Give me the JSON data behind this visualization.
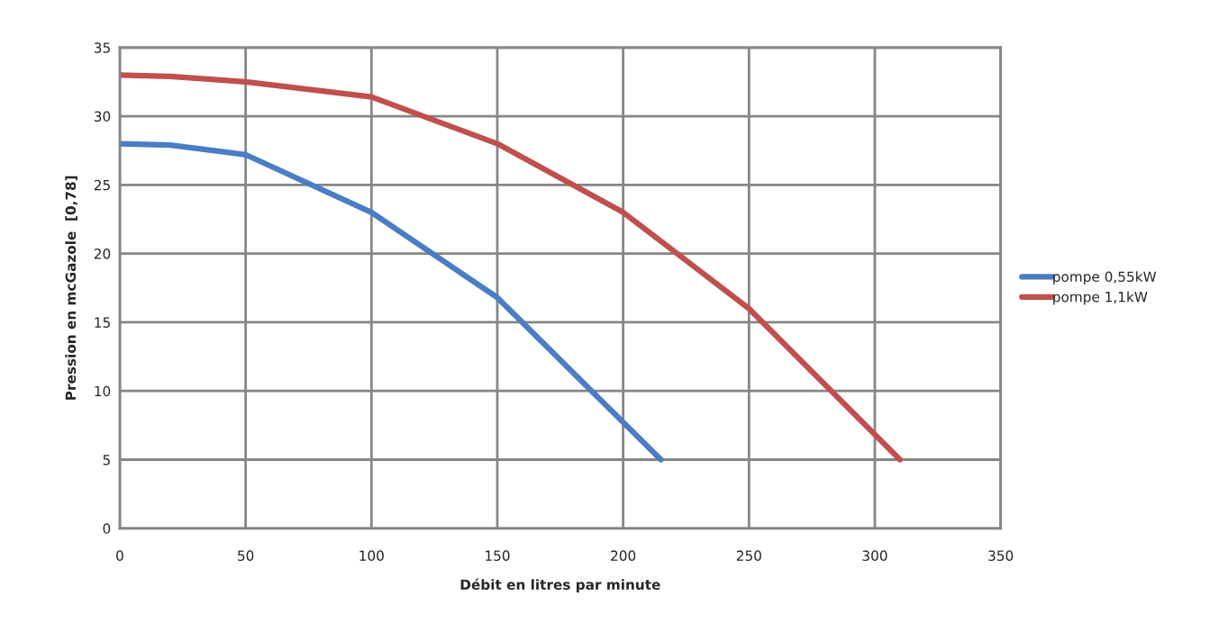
{
  "chart_data": {
    "type": "line",
    "xlabel": "Débit en litres par minute",
    "ylabel": "Pression en mcGazole  [0,78]",
    "series": [
      {
        "name": "pompe 0,55kW",
        "color": "#4a7dc4",
        "x": [
          0,
          20,
          50,
          100,
          150,
          215
        ],
        "values": [
          28,
          27.9,
          27.2,
          23,
          16.8,
          5
        ]
      },
      {
        "name": "pompe 1,1kW",
        "color": "#c0504d",
        "x": [
          0,
          20,
          50,
          100,
          150,
          200,
          250,
          310
        ],
        "values": [
          33,
          32.9,
          32.5,
          31.4,
          28,
          23,
          16,
          5
        ]
      }
    ],
    "xlim": [
      0,
      350
    ],
    "xticks": [
      0,
      50,
      100,
      150,
      200,
      250,
      300,
      350
    ],
    "ylim": [
      0,
      35
    ],
    "yticks": [
      0,
      5,
      10,
      15,
      20,
      25,
      30,
      35
    ],
    "grid": true,
    "legend": "right",
    "marker": "none",
    "line_style": "solid"
  }
}
